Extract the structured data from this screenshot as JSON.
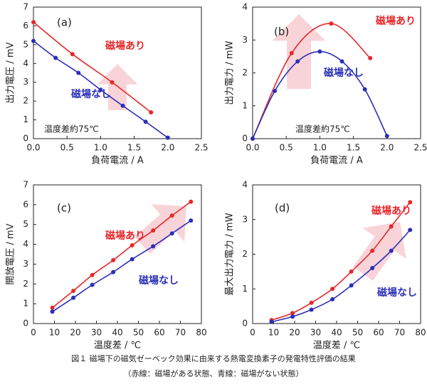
{
  "chart_data": [
    {
      "type": "line",
      "panel_label": "(a)",
      "x_label": "負荷電流 / A",
      "y_label": "出力電圧 / mV",
      "annotation": "温度差約75℃",
      "xlim": [
        0,
        2.5
      ],
      "xticks": [
        {
          "value": 0,
          "label": "0.0"
        },
        0.5,
        {
          "value": 1,
          "label": "1.0"
        },
        1.5,
        {
          "value": 2,
          "label": "2.0"
        },
        2.5
      ],
      "ylim": [
        0,
        7
      ],
      "yticks": [
        0,
        1,
        2,
        3,
        4,
        5,
        6,
        7
      ],
      "series": [
        {
          "name": "磁場あり",
          "color": "#e8272a",
          "x": [
            0,
            0.58,
            1.17,
            1.75
          ],
          "values": [
            6.2,
            4.5,
            3.0,
            1.4
          ]
        },
        {
          "name": "磁場なし",
          "color": "#2b2fb8",
          "x": [
            0,
            0.33,
            0.67,
            1.0,
            1.33,
            1.67,
            2.0
          ],
          "values": [
            5.2,
            4.3,
            3.5,
            2.6,
            1.75,
            0.9,
            0.05
          ]
        }
      ]
    },
    {
      "type": "line",
      "panel_label": "(b)",
      "x_label": "負荷電流 / A",
      "y_label": "出力電力 / mW",
      "annotation": "温度差約75℃",
      "xlim": [
        0,
        2.5
      ],
      "xticks": [
        {
          "value": 0,
          "label": "0.0"
        },
        0.5,
        {
          "value": 1,
          "label": "1.0"
        },
        1.5,
        {
          "value": 2,
          "label": "2.0"
        },
        2.5
      ],
      "ylim": [
        0,
        4
      ],
      "yticks": [
        0,
        1,
        2,
        3,
        4
      ],
      "series": [
        {
          "name": "磁場あり",
          "color": "#e8272a",
          "x": [
            0,
            0.58,
            1.17,
            1.75
          ],
          "values": [
            0,
            2.6,
            3.5,
            2.45
          ]
        },
        {
          "name": "磁場なし",
          "color": "#2b2fb8",
          "x": [
            0,
            0.33,
            0.67,
            1.0,
            1.33,
            1.67,
            2.0
          ],
          "values": [
            0,
            1.45,
            2.35,
            2.65,
            2.35,
            1.5,
            0.08
          ]
        }
      ]
    },
    {
      "type": "line",
      "panel_label": "(c)",
      "x_label": "温度差 / ℃",
      "y_label": "開放電圧 / mV",
      "xlim": [
        0,
        80
      ],
      "xticks": [
        0,
        10,
        20,
        30,
        40,
        50,
        60,
        70,
        80
      ],
      "ylim": [
        0,
        7
      ],
      "yticks": [
        0,
        1,
        2,
        3,
        4,
        5,
        6,
        7
      ],
      "series": [
        {
          "name": "磁場あり",
          "color": "#e8272a",
          "x": [
            9,
            19,
            28,
            38,
            47,
            57,
            66,
            75
          ],
          "values": [
            0.8,
            1.65,
            2.45,
            3.2,
            3.95,
            4.7,
            5.45,
            6.15
          ]
        },
        {
          "name": "磁場なし",
          "color": "#2b2fb8",
          "x": [
            9,
            19,
            28,
            38,
            47,
            57,
            66,
            75
          ],
          "values": [
            0.6,
            1.3,
            1.95,
            2.6,
            3.25,
            3.9,
            4.55,
            5.2
          ]
        }
      ]
    },
    {
      "type": "line",
      "panel_label": "(d)",
      "x_label": "温度差 / ℃",
      "y_label": "最大出力電力 / mW",
      "xlim": [
        0,
        80
      ],
      "xticks": [
        0,
        10,
        20,
        30,
        40,
        50,
        60,
        70,
        80
      ],
      "ylim": [
        0,
        4
      ],
      "yticks": [
        0,
        1,
        2,
        3,
        4
      ],
      "series": [
        {
          "name": "磁場あり",
          "color": "#e8272a",
          "x": [
            9,
            19,
            28,
            38,
            47,
            57,
            66,
            75
          ],
          "values": [
            0.1,
            0.3,
            0.6,
            1.0,
            1.5,
            2.1,
            2.8,
            3.5
          ]
        },
        {
          "name": "磁場なし",
          "color": "#2b2fb8",
          "x": [
            9,
            19,
            28,
            38,
            47,
            57,
            66,
            75
          ],
          "values": [
            0.05,
            0.2,
            0.4,
            0.7,
            1.1,
            1.6,
            2.1,
            2.7
          ]
        }
      ]
    }
  ],
  "caption": {
    "title": "図１ 磁場下の磁気ゼーベック効果に由来する熱電変換素子の発電特性評価の結果",
    "note": "（赤線：磁場がある状態、青線：磁場がない状態）"
  }
}
